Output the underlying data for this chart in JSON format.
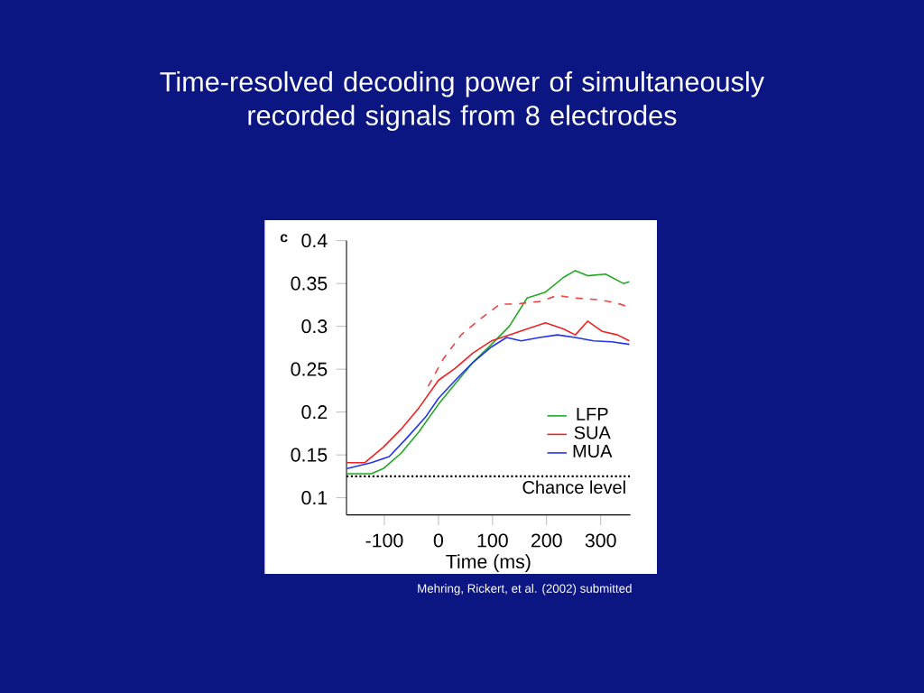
{
  "chart_data": {
    "type": "line",
    "title": "Time-resolved decoding power of simultaneously recorded signals from 8 electrodes",
    "xlabel": "Time (ms)",
    "xlim": [
      -170,
      355
    ],
    "ylim": [
      0.08,
      0.4
    ],
    "xticks": [
      -100,
      0,
      100,
      200,
      300
    ],
    "yticks": [
      0.1,
      0.15,
      0.2,
      0.25,
      0.3,
      0.35,
      0.4
    ],
    "series": [
      {
        "name": "LFP",
        "color": "#22aa22",
        "line_style": "solid",
        "x": [
          -169,
          -124,
          -102,
          -69,
          -36,
          0,
          31,
          64,
          98,
          131,
          164,
          198,
          231,
          253,
          276,
          309,
          342,
          353
        ],
        "values": [
          0.128,
          0.128,
          0.134,
          0.152,
          0.177,
          0.209,
          0.233,
          0.258,
          0.279,
          0.3,
          0.333,
          0.34,
          0.357,
          0.365,
          0.359,
          0.361,
          0.35,
          0.352
        ]
      },
      {
        "name": "SUA",
        "color": "#ee2222",
        "line_style": "solid",
        "x": [
          -169,
          -136,
          -102,
          -69,
          -36,
          0,
          31,
          64,
          98,
          131,
          164,
          198,
          231,
          253,
          276,
          303,
          331,
          353
        ],
        "values": [
          0.141,
          0.141,
          0.159,
          0.18,
          0.205,
          0.237,
          0.251,
          0.269,
          0.283,
          0.29,
          0.297,
          0.304,
          0.297,
          0.29,
          0.306,
          0.294,
          0.29,
          0.283
        ]
      },
      {
        "name": "MUA",
        "color": "#2233ee",
        "line_style": "solid",
        "x": [
          -169,
          -124,
          -91,
          -58,
          -24,
          0,
          31,
          64,
          98,
          126,
          153,
          187,
          220,
          253,
          287,
          320,
          353
        ],
        "values": [
          0.134,
          0.141,
          0.148,
          0.17,
          0.194,
          0.216,
          0.237,
          0.258,
          0.276,
          0.287,
          0.283,
          0.287,
          0.29,
          0.287,
          0.283,
          0.282,
          0.279
        ]
      },
      {
        "color": "#ee4444",
        "line_style": "dashed",
        "x": [
          -19,
          9,
          42,
          76,
          114,
          142,
          187,
          220,
          253,
          298,
          331,
          353
        ],
        "values": [
          0.23,
          0.262,
          0.29,
          0.308,
          0.326,
          0.326,
          0.329,
          0.336,
          0.333,
          0.331,
          0.327,
          0.322
        ]
      }
    ],
    "ref_lines": [
      {
        "axis": "y",
        "value": 0.125,
        "label": "Chance level",
        "color": "#000000",
        "line_style": "dotted"
      }
    ],
    "legend": "bottom right",
    "grid": false,
    "annotations": [
      "c",
      "Mehring, Rickert, et al. (2002) submitted"
    ]
  }
}
